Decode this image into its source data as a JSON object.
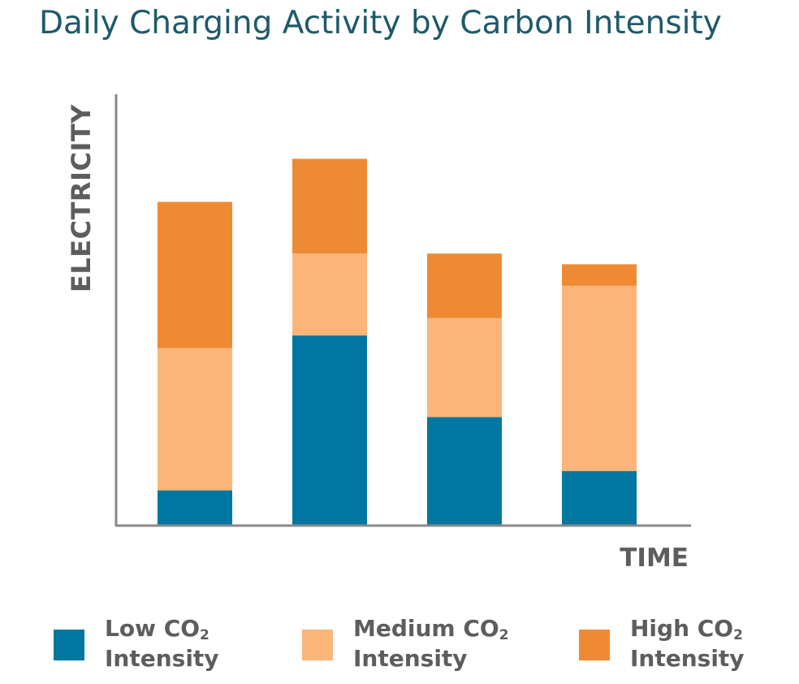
{
  "title": "Daily Charging Activity by Carbon Intensity",
  "colors": {
    "low": "#0077a1",
    "medium": "#fbb57a",
    "high": "#ef8a34",
    "axis": "#8a8a8a",
    "title": "#1e5a6b",
    "label": "#5d5d5d"
  },
  "legend": [
    {
      "key": "low",
      "line1": "Low CO",
      "sub": "2",
      "line2": "Intensity"
    },
    {
      "key": "medium",
      "line1": "Medium CO",
      "sub": "2",
      "line2": "Intensity"
    },
    {
      "key": "high",
      "line1": "High CO",
      "sub": "2",
      "line2": "Intensity"
    }
  ],
  "chart_data": {
    "type": "bar",
    "stacked": true,
    "title": "Daily Charging Activity by Carbon Intensity",
    "xlabel": "TIME",
    "ylabel": "ELECTRICITY",
    "categories": [
      "",
      "",
      "",
      ""
    ],
    "grid": false,
    "legend_position": "bottom",
    "ylim": [
      0,
      100
    ],
    "series": [
      {
        "name": "Low CO2 Intensity",
        "key": "low",
        "values": [
          8,
          44,
          25,
          12.5
        ]
      },
      {
        "name": "Medium CO2 Intensity",
        "key": "medium",
        "values": [
          33,
          19,
          23,
          43
        ]
      },
      {
        "name": "High CO2 Intensity",
        "key": "high",
        "values": [
          34,
          22,
          15,
          5
        ]
      }
    ]
  }
}
